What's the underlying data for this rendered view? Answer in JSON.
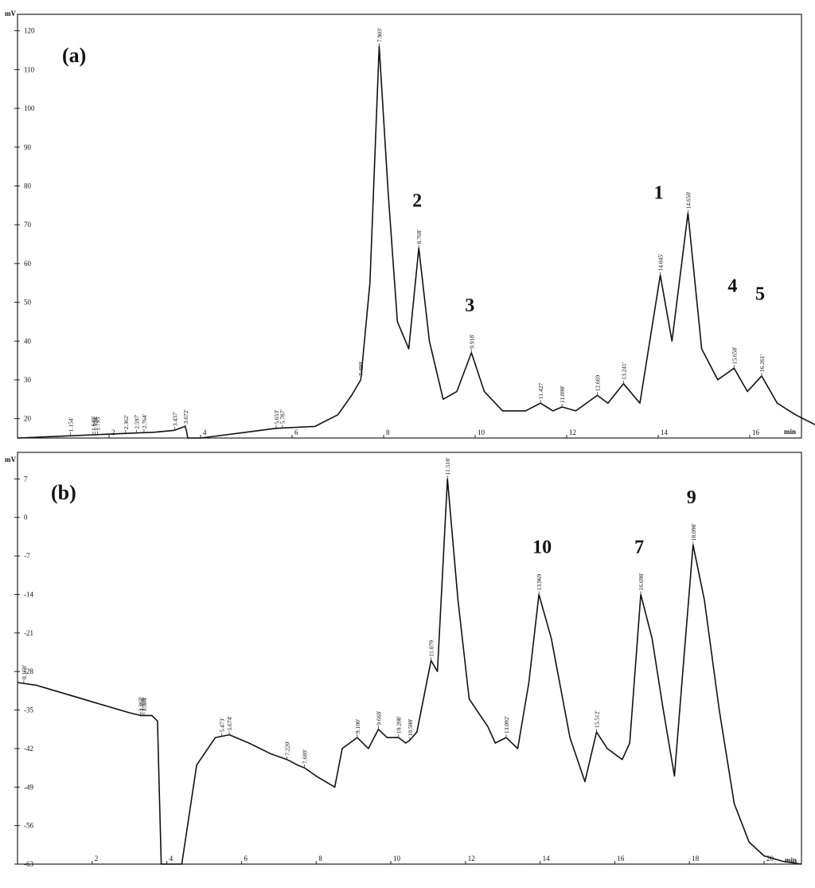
{
  "chart_data": [
    {
      "panel": "(a)",
      "type": "line",
      "ylabel": "mV",
      "xlabel": "min",
      "xlim": [
        0,
        17.8
      ],
      "ylim": [
        15,
        120
      ],
      "x_ticks": [
        "2",
        "4",
        "6",
        "8",
        "10",
        "12",
        "14",
        "16"
      ],
      "y_ticks": [
        "20",
        "30",
        "40",
        "50",
        "60",
        "70",
        "80",
        "90",
        "100",
        "110",
        "120"
      ],
      "trace": {
        "x": [
          0,
          1,
          2,
          3,
          3.43,
          3.66,
          3.69,
          3.72,
          4.0,
          5.0,
          5.65,
          6.5,
          7.0,
          7.3,
          7.5,
          7.7,
          7.903,
          8.1,
          8.3,
          8.55,
          8.768,
          9.0,
          9.3,
          9.6,
          9.918,
          10.2,
          10.6,
          11.1,
          11.427,
          11.7,
          11.898,
          12.2,
          12.669,
          12.9,
          13.241,
          13.6,
          14.045,
          14.3,
          14.65,
          14.95,
          15.3,
          15.658,
          15.95,
          16.261,
          16.6,
          17.0,
          17.5,
          17.8
        ],
        "y": [
          15,
          15.5,
          16,
          16.5,
          17,
          18,
          17,
          15,
          14,
          16.5,
          17.5,
          18,
          21,
          26,
          30,
          55,
          116,
          78,
          45,
          38,
          64,
          40,
          25,
          27,
          37,
          27,
          22,
          22,
          24,
          22,
          23,
          22,
          26,
          24,
          29,
          24,
          57,
          40,
          73,
          38,
          30,
          33,
          27,
          31,
          24,
          21,
          18,
          17
        ]
      },
      "peak_labels": [
        {
          "x": 1.154,
          "text": "1.154'"
        },
        {
          "x": 1.65,
          "text": "1.648'"
        },
        {
          "x": 1.7,
          "text": "1.734'"
        },
        {
          "x": 1.75,
          "text": "1.795'"
        },
        {
          "x": 2.362,
          "text": "2.362'"
        },
        {
          "x": 2.597,
          "text": "2.597'"
        },
        {
          "x": 2.764,
          "text": "2.764'"
        },
        {
          "x": 3.437,
          "text": "3.437'"
        },
        {
          "x": 3.672,
          "text": "3.672'"
        },
        {
          "x": 5.653,
          "text": "5.653'"
        },
        {
          "x": 5.787,
          "text": "5.787'"
        },
        {
          "x": 7.499,
          "text": "7.499'"
        },
        {
          "x": 7.903,
          "text": "7.903'"
        },
        {
          "x": 8.768,
          "text": "8.768'"
        },
        {
          "x": 9.918,
          "text": "9.918'"
        },
        {
          "x": 11.427,
          "text": "11.427"
        },
        {
          "x": 11.898,
          "text": "11.898'"
        },
        {
          "x": 12.669,
          "text": "12.669"
        },
        {
          "x": 13.241,
          "text": "13.241'"
        },
        {
          "x": 14.045,
          "text": "14.045'"
        },
        {
          "x": 14.65,
          "text": "14.650'"
        },
        {
          "x": 15.658,
          "text": "15.658'"
        },
        {
          "x": 16.261,
          "text": "16.261'"
        }
      ],
      "peak_numbers": [
        {
          "x": 8.768,
          "y": 64,
          "text": "2"
        },
        {
          "x": 9.918,
          "y": 37,
          "text": "3"
        },
        {
          "x": 14.045,
          "y": 66,
          "text": "1"
        },
        {
          "x": 15.658,
          "y": 42,
          "text": "4"
        },
        {
          "x": 16.261,
          "y": 40,
          "text": "5"
        }
      ]
    },
    {
      "panel": "(b)",
      "type": "line",
      "ylabel": "mV",
      "xlabel": "min",
      "xlim": [
        0,
        21
      ],
      "ylim": [
        -63,
        10
      ],
      "x_ticks": [
        "2",
        "4",
        "6",
        "8",
        "10",
        "12",
        "14",
        "16",
        "18",
        "20"
      ],
      "y_ticks": [
        "7",
        "0",
        "-7",
        "-14",
        "-21",
        "-28",
        "-35",
        "-42",
        "-49",
        "-56",
        "-63"
      ],
      "trace": {
        "x": [
          0,
          0.5,
          1.0,
          1.5,
          2.0,
          2.5,
          3.0,
          3.3,
          3.6,
          3.75,
          3.8,
          3.85,
          4.1,
          4.4,
          4.8,
          5.3,
          5.673,
          6.2,
          6.8,
          7.22,
          7.5,
          7.689,
          8.0,
          8.5,
          8.7,
          9.1,
          9.4,
          9.668,
          9.9,
          10.208,
          10.4,
          10.508,
          10.7,
          11.079,
          11.25,
          11.518,
          11.8,
          12.1,
          12.6,
          12.8,
          13.092,
          13.4,
          13.7,
          13.969,
          14.3,
          14.8,
          15.2,
          15.512,
          15.8,
          16.2,
          16.4,
          16.698,
          17.0,
          17.3,
          17.6,
          17.8,
          18.098,
          18.4,
          18.8,
          19.2,
          19.6,
          20.0,
          20.5,
          21.0
        ],
        "y": [
          -30,
          -30.5,
          -31.5,
          -32.5,
          -33.5,
          -34.5,
          -35.5,
          -36,
          -36,
          -37,
          -50,
          -66,
          -66,
          -66,
          -45,
          -40,
          -39.5,
          -41,
          -43,
          -44,
          -45,
          -45.5,
          -47,
          -49,
          -42,
          -40,
          -42,
          -38.5,
          -40,
          -40,
          -41,
          -40.5,
          -39,
          -26,
          -28,
          7,
          -15,
          -33,
          -38,
          -41,
          -40,
          -42,
          -30,
          -14,
          -22,
          -40,
          -48,
          -39,
          -42,
          -44,
          -41,
          -14,
          -22,
          -35,
          -47,
          -30,
          -5,
          -15,
          -35,
          -52,
          -59,
          -61.5,
          -62.5,
          -63
        ]
      },
      "peak_labels": [
        {
          "x": 0.168,
          "text": "0.168'"
        },
        {
          "x": 3.29,
          "text": "3.267'"
        },
        {
          "x": 3.34,
          "text": "3.358'"
        },
        {
          "x": 3.39,
          "text": "3.384'"
        },
        {
          "x": 5.473,
          "text": "5.473'"
        },
        {
          "x": 5.674,
          "text": "5.674'"
        },
        {
          "x": 7.22,
          "text": "7.220'"
        },
        {
          "x": 7.689,
          "text": "7.689'"
        },
        {
          "x": 9.1,
          "text": "9.100'"
        },
        {
          "x": 9.668,
          "text": "9.668'"
        },
        {
          "x": 10.208,
          "text": "10.208'"
        },
        {
          "x": 10.508,
          "text": "10.508'"
        },
        {
          "x": 11.079,
          "text": "11.079"
        },
        {
          "x": 11.518,
          "text": "11.518'"
        },
        {
          "x": 13.092,
          "text": "13.092'"
        },
        {
          "x": 13.969,
          "text": "13.969"
        },
        {
          "x": 15.512,
          "text": "15.512'"
        },
        {
          "x": 16.698,
          "text": "16.698'"
        },
        {
          "x": 18.098,
          "text": "18.098'"
        }
      ],
      "peak_numbers": [
        {
          "x": 13.969,
          "y": -14,
          "text": "10"
        },
        {
          "x": 16.698,
          "y": -14,
          "text": "7"
        },
        {
          "x": 18.098,
          "y": -5,
          "text": "9"
        }
      ]
    }
  ]
}
